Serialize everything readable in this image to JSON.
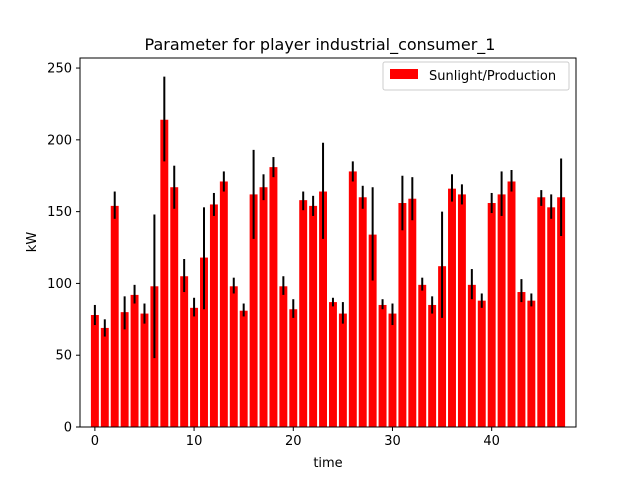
{
  "chart_data": {
    "type": "bar",
    "title": "Parameter for player industrial_consumer_1",
    "xlabel": "time",
    "ylabel": "kW",
    "xlim": [
      -1.5,
      48.5
    ],
    "ylim": [
      0,
      257
    ],
    "xticks": [
      0,
      10,
      20,
      30,
      40
    ],
    "yticks": [
      0,
      50,
      100,
      150,
      200,
      250
    ],
    "grid": false,
    "legend_position": "top-right",
    "bar_color": "#ff0000",
    "error_color": "#000000",
    "series": [
      {
        "name": "Sunlight/Production",
        "x": [
          0,
          1,
          2,
          3,
          4,
          5,
          6,
          7,
          8,
          9,
          10,
          11,
          12,
          13,
          14,
          15,
          16,
          17,
          18,
          19,
          20,
          21,
          22,
          23,
          24,
          25,
          26,
          27,
          28,
          29,
          30,
          31,
          32,
          33,
          34,
          35,
          36,
          37,
          38,
          39,
          40,
          41,
          42,
          43,
          44,
          45,
          46,
          47
        ],
        "values": [
          78,
          69,
          154,
          80,
          92,
          79,
          98,
          214,
          167,
          105,
          83,
          118,
          155,
          171,
          98,
          81,
          162,
          167,
          181,
          98,
          82,
          158,
          154,
          164,
          87,
          79,
          178,
          160,
          134,
          85,
          79,
          156,
          159,
          99,
          85,
          112,
          166,
          162,
          99,
          88,
          156,
          162,
          171,
          94,
          88,
          160,
          153,
          160
        ],
        "error_low": [
          71,
          63,
          145,
          68,
          86,
          72,
          48,
          185,
          152,
          94,
          77,
          82,
          147,
          164,
          93,
          77,
          131,
          158,
          174,
          92,
          76,
          151,
          147,
          131,
          84,
          72,
          171,
          152,
          102,
          82,
          71,
          137,
          144,
          95,
          79,
          76,
          157,
          155,
          89,
          83,
          149,
          147,
          164,
          87,
          84,
          154,
          145,
          133
        ],
        "error_high": [
          85,
          75,
          164,
          91,
          99,
          86,
          148,
          244,
          182,
          117,
          90,
          153,
          163,
          178,
          104,
          86,
          193,
          176,
          188,
          105,
          89,
          164,
          161,
          198,
          90,
          87,
          185,
          168,
          167,
          89,
          86,
          175,
          174,
          104,
          91,
          150,
          176,
          169,
          110,
          93,
          163,
          178,
          179,
          103,
          93,
          165,
          162,
          187
        ]
      }
    ]
  }
}
